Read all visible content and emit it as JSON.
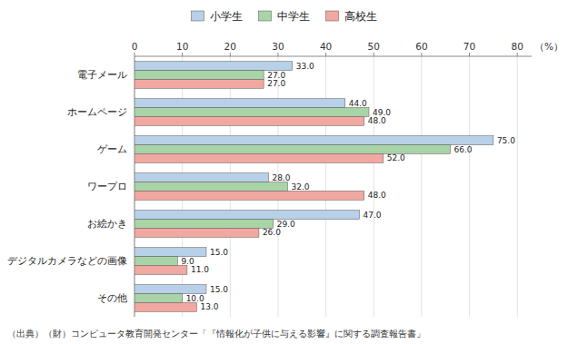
{
  "chart_data": {
    "type": "bar",
    "orientation": "horizontal",
    "categories": [
      "電子メール",
      "ホームページ",
      "ゲーム",
      "ワープロ",
      "お絵かき",
      "デジタルカメラなどの画像",
      "その他"
    ],
    "series": [
      {
        "name": "小学生",
        "color": "#b8d0e8",
        "values": [
          33.0,
          44.0,
          75.0,
          28.0,
          47.0,
          15.0,
          15.0
        ],
        "value_labels": [
          "33.0",
          "44.0",
          "75.0",
          "28.0",
          "47.0",
          "15.0",
          "15.0"
        ]
      },
      {
        "name": "中学生",
        "color": "#a8d4a8",
        "values": [
          27.0,
          49.0,
          66.0,
          32.0,
          29.0,
          9.0,
          10.0
        ],
        "value_labels": [
          "27.0",
          "49.0",
          "66.0",
          "32.0",
          "29.0",
          "9.0",
          "10.0"
        ]
      },
      {
        "name": "高校生",
        "color": "#f0a8a0",
        "values": [
          27.0,
          48.0,
          52.0,
          48.0,
          26.0,
          11.0,
          13.0
        ],
        "value_labels": [
          "27.0",
          "48.0",
          "52.0",
          "48.0",
          "26.0",
          "11.0",
          "13.0"
        ]
      }
    ],
    "xlabel": "（%）",
    "caption": "（出典）（財）コンピュータ教育開発センター「『情報化が子供に与える影響』に関する調査報告書」",
    "xlim": [
      0,
      83
    ],
    "xticks": [
      0,
      10,
      20,
      30,
      40,
      50,
      60,
      70,
      80
    ],
    "grid": true,
    "legend": "top",
    "data_labels": true
  }
}
